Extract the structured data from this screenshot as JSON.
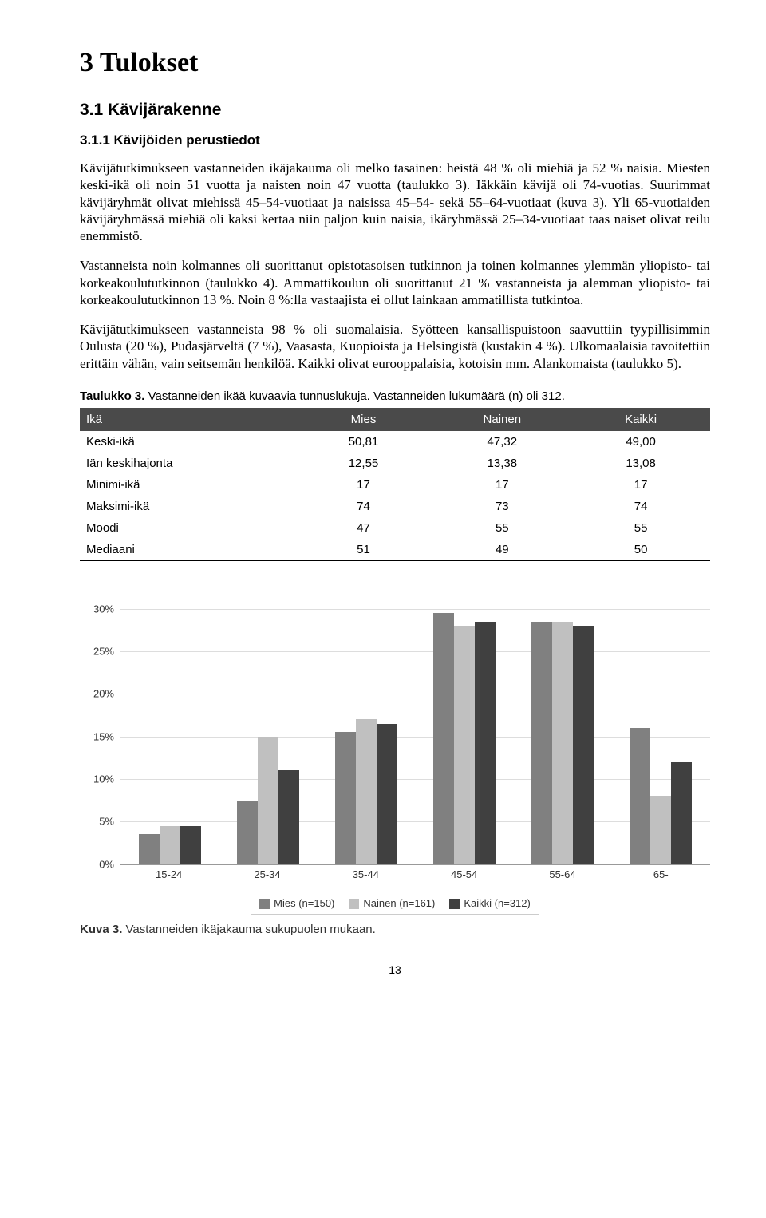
{
  "headings": {
    "h1": "3 Tulokset",
    "h2": "3.1 Kävijärakenne",
    "h3": "3.1.1 Kävijöiden perustiedot"
  },
  "paragraphs": {
    "p1": "Kävijätutkimukseen vastanneiden ikäjakauma oli melko tasainen: heistä 48 % oli miehiä ja 52 % naisia. Miesten keski-ikä oli noin 51 vuotta ja naisten noin 47 vuotta (taulukko 3). Iäkkäin kävijä oli 74-vuotias. Suurimmat kävijäryhmät olivat miehissä 45–54-vuotiaat ja naisissa 45–54- sekä 55–64-vuotiaat (kuva 3). Yli 65-vuotiaiden kävijäryhmässä miehiä oli kaksi kertaa niin paljon kuin naisia, ikäryhmässä 25–34-vuotiaat taas naiset olivat reilu enemmistö.",
    "p2": "Vastanneista noin kolmannes oli suorittanut opistotasoisen tutkinnon ja toinen kolmannes ylemmän yliopisto- tai korkeakoulututkinnon (taulukko 4). Ammattikoulun oli suorittanut 21 % vastanneista ja alemman yliopisto- tai korkeakoulututkinnon 13 %. Noin 8 %:lla vastaajista ei ollut lainkaan ammatillista tutkintoa.",
    "p3": "Kävijätutkimukseen vastanneista 98 % oli suomalaisia. Syötteen kansallispuistoon saavuttiin tyypillisimmin Oulusta (20 %), Pudasjärveltä (7 %), Vaasasta, Kuopioista ja Helsingistä (kustakin 4 %). Ulkomaalaisia tavoitettiin erittäin vähän, vain seitsemän henkilöä. Kaikki olivat eurooppalaisia, kotoisin mm. Alankomaista (taulukko 5)."
  },
  "table_caption": {
    "bold": "Taulukko 3.",
    "rest": " Vastanneiden ikää kuvaavia tunnuslukuja. Vastanneiden lukumäärä (n) oli 312."
  },
  "table": {
    "headers": [
      "Ikä",
      "Mies",
      "Nainen",
      "Kaikki"
    ],
    "rows": [
      [
        "Keski-ikä",
        "50,81",
        "47,32",
        "49,00"
      ],
      [
        "Iän keskihajonta",
        "12,55",
        "13,38",
        "13,08"
      ],
      [
        "Minimi-ikä",
        "17",
        "17",
        "17"
      ],
      [
        "Maksimi-ikä",
        "74",
        "73",
        "74"
      ],
      [
        "Moodi",
        "47",
        "55",
        "55"
      ],
      [
        "Mediaani",
        "51",
        "49",
        "50"
      ]
    ]
  },
  "chart": {
    "type": "bar",
    "ymax": 30,
    "ytick_step": 5,
    "categories": [
      "15-24",
      "25-34",
      "35-44",
      "45-54",
      "55-64",
      "65-"
    ],
    "series": [
      {
        "name": "Mies (n=150)",
        "color": "#808080",
        "values": [
          3.5,
          7.5,
          15.5,
          29.5,
          28.5,
          16
        ]
      },
      {
        "name": "Nainen (n=161)",
        "color": "#c0c0c0",
        "values": [
          4.5,
          15,
          17,
          28,
          28.5,
          8
        ]
      },
      {
        "name": "Kaikki (n=312)",
        "color": "#404040",
        "values": [
          4.5,
          11,
          16.5,
          28.5,
          28,
          12
        ]
      }
    ],
    "grid_color": "#dddddd",
    "axis_color": "#999999",
    "label_fontsize": 13
  },
  "figure_caption": {
    "bold": "Kuva 3.",
    "rest": " Vastanneiden ikäjakauma sukupuolen mukaan."
  },
  "page_number": "13"
}
